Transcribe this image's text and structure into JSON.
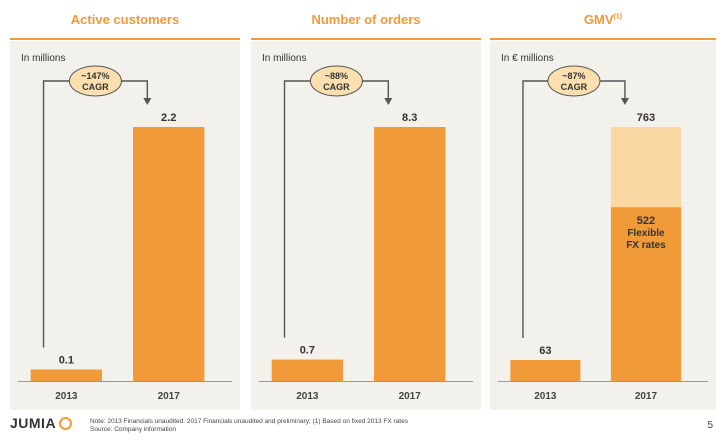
{
  "chart_data": [
    {
      "type": "bar",
      "title": "Active customers",
      "title_sup": "",
      "unit_label": "In millions",
      "categories": [
        "2013",
        "2017"
      ],
      "values": [
        0.1,
        2.2
      ],
      "value_labels": [
        "0.1",
        "2.2"
      ],
      "cagr": [
        "~147%",
        "CAGR"
      ],
      "ylim": [
        0,
        2.2
      ],
      "grid": false
    },
    {
      "type": "bar",
      "title": "Number of orders",
      "title_sup": "",
      "unit_label": "In millions",
      "categories": [
        "2013",
        "2017"
      ],
      "values": [
        0.7,
        8.3
      ],
      "value_labels": [
        "0.7",
        "8.3"
      ],
      "cagr": [
        "~88%",
        "CAGR"
      ],
      "ylim": [
        0,
        8.3
      ],
      "grid": false
    },
    {
      "type": "bar",
      "title": "GMV",
      "title_sup": "(1)",
      "unit_label": "In € millions",
      "categories": [
        "2013",
        "2017"
      ],
      "values": [
        63,
        763
      ],
      "value_labels": [
        "63",
        "763"
      ],
      "inner_value": 522,
      "inner_label": [
        "522",
        "Flexible",
        "FX rates"
      ],
      "cagr": [
        "~87%",
        "CAGR"
      ],
      "ylim": [
        0,
        763
      ],
      "grid": false
    }
  ],
  "colors": {
    "accent": "#F09A3A",
    "light_accent": "#FAD7A3",
    "panel_bg": "#F2F1EC",
    "bubble": "#FBDFAF",
    "connector": "#555555"
  },
  "footer": {
    "logo": "JUMIA",
    "note": "Note: 2013 Financials unaudited. 2017 Financials unaudited and preliminary; (1) Based on fixed 2013 FX rates",
    "source": "Source: Company information",
    "page": "5"
  }
}
